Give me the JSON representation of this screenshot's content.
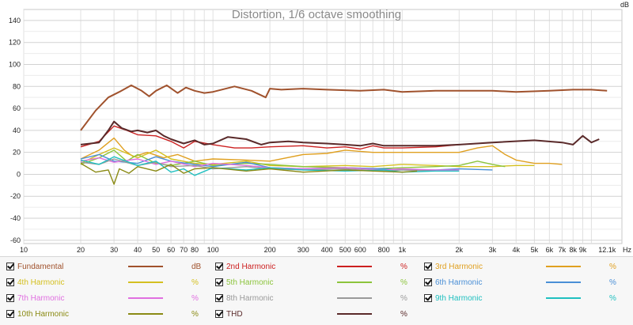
{
  "chart_data": {
    "type": "line",
    "title": "Distortion, 1/6 octave smoothing",
    "xlabel": "Hz",
    "ylabel": "dB",
    "x_scale": "log",
    "xlim": [
      10,
      14500
    ],
    "ylim": [
      -63,
      150
    ],
    "grid": true,
    "y_ticks": [
      140,
      120,
      100,
      80,
      60,
      40,
      20,
      0,
      -20,
      -40,
      -60
    ],
    "x_ticks": [
      {
        "v": 10,
        "label": "10"
      },
      {
        "v": 20,
        "label": "20"
      },
      {
        "v": 30,
        "label": "30"
      },
      {
        "v": 40,
        "label": "40"
      },
      {
        "v": 50,
        "label": "50"
      },
      {
        "v": 60,
        "label": "60"
      },
      {
        "v": 70,
        "label": "70"
      },
      {
        "v": 80,
        "label": "80"
      },
      {
        "v": 100,
        "label": "100"
      },
      {
        "v": 200,
        "label": "200"
      },
      {
        "v": 300,
        "label": "300"
      },
      {
        "v": 400,
        "label": "400"
      },
      {
        "v": 500,
        "label": "500"
      },
      {
        "v": 600,
        "label": "600"
      },
      {
        "v": 800,
        "label": "800"
      },
      {
        "v": 1000,
        "label": "1k"
      },
      {
        "v": 2000,
        "label": "2k"
      },
      {
        "v": 3000,
        "label": "3k"
      },
      {
        "v": 4000,
        "label": "4k"
      },
      {
        "v": 5000,
        "label": "5k"
      },
      {
        "v": 6000,
        "label": "6k"
      },
      {
        "v": 7000,
        "label": "7k"
      },
      {
        "v": 8000,
        "label": "8k"
      },
      {
        "v": 9000,
        "label": "9k"
      },
      {
        "v": 12100,
        "label": "12.1k"
      }
    ],
    "series": [
      {
        "name": "Fundamental",
        "unit": "dB",
        "color": "#a0522d",
        "x": [
          20,
          24,
          28,
          32,
          37,
          42,
          46,
          50,
          57,
          65,
          72,
          80,
          90,
          100,
          130,
          160,
          190,
          200,
          230,
          300,
          400,
          600,
          800,
          1000,
          1500,
          2000,
          3000,
          4000,
          6000,
          8000,
          10000,
          12100
        ],
        "y": [
          40,
          58,
          70,
          75,
          81,
          76,
          71,
          76,
          81,
          74,
          79,
          76,
          74,
          75,
          80,
          76,
          70,
          78,
          77,
          78,
          77,
          76,
          77,
          75,
          76,
          76,
          76,
          75,
          76,
          77,
          77,
          76
        ]
      },
      {
        "name": "2nd Harmonic",
        "unit": "%",
        "color": "#cc2020",
        "x": [
          20,
          25,
          30,
          35,
          40,
          50,
          60,
          70,
          80,
          100,
          130,
          160,
          200,
          300,
          400,
          500,
          600,
          700,
          800,
          1000,
          1500,
          2000,
          3000
        ],
        "y": [
          25,
          30,
          44,
          40,
          36,
          35,
          30,
          24,
          30,
          27,
          24,
          24,
          25,
          26,
          24,
          25,
          23,
          26,
          24,
          24,
          25,
          27,
          29
        ]
      },
      {
        "name": "3rd Harmonic",
        "unit": "%",
        "color": "#e0a020",
        "x": [
          20,
          25,
          30,
          34,
          38,
          45,
          55,
          65,
          80,
          100,
          150,
          200,
          300,
          400,
          500,
          700,
          1000,
          1500,
          2000,
          2500,
          3000,
          3500,
          4000,
          5000,
          6000,
          7000
        ],
        "y": [
          14,
          22,
          33,
          22,
          16,
          20,
          15,
          18,
          12,
          14,
          13,
          12,
          18,
          19,
          22,
          20,
          20,
          20,
          20,
          24,
          26,
          18,
          13,
          10,
          10,
          9
        ]
      },
      {
        "name": "4th Harmonic",
        "unit": "%",
        "color": "#d4c020",
        "x": [
          20,
          25,
          30,
          40,
          50,
          60,
          80,
          100,
          150,
          200,
          300,
          500,
          700,
          1000,
          1500,
          2000,
          3000,
          4000,
          5000
        ],
        "y": [
          10,
          18,
          24,
          15,
          22,
          14,
          10,
          9,
          12,
          8,
          7,
          8,
          7,
          9,
          8,
          7,
          7,
          8,
          8
        ]
      },
      {
        "name": "5th Harmonic",
        "unit": "%",
        "color": "#8cc43c",
        "x": [
          20,
          25,
          30,
          35,
          40,
          50,
          60,
          80,
          100,
          150,
          200,
          300,
          500,
          700,
          1000,
          1500,
          2000,
          2500,
          3000,
          3500
        ],
        "y": [
          9,
          15,
          22,
          12,
          18,
          10,
          8,
          12,
          8,
          10,
          9,
          7,
          6,
          5,
          6,
          7,
          8,
          12,
          9,
          7
        ]
      },
      {
        "name": "6th Harmonic",
        "unit": "%",
        "color": "#4a8fd6",
        "x": [
          20,
          25,
          30,
          40,
          50,
          60,
          80,
          100,
          150,
          200,
          300,
          500,
          800,
          1000,
          1500,
          2000,
          3000
        ],
        "y": [
          14,
          18,
          12,
          10,
          16,
          12,
          9,
          7,
          11,
          6,
          5,
          6,
          5,
          4,
          4,
          5,
          4
        ]
      },
      {
        "name": "7th Harmonic",
        "unit": "%",
        "color": "#e070e0",
        "x": [
          20,
          25,
          30,
          40,
          50,
          60,
          80,
          100,
          150,
          200,
          300,
          500,
          800,
          1000,
          1500,
          2000
        ],
        "y": [
          12,
          15,
          11,
          14,
          9,
          12,
          7,
          10,
          8,
          6,
          5,
          6,
          4,
          5,
          4,
          4
        ]
      },
      {
        "name": "8th Harmonic",
        "unit": "%",
        "color": "#9a9a9a",
        "x": [
          20,
          25,
          30,
          40,
          50,
          60,
          80,
          100,
          150,
          200,
          300,
          500,
          800,
          1000,
          1500
        ],
        "y": [
          11,
          9,
          14,
          8,
          11,
          7,
          8,
          5,
          7,
          5,
          4,
          5,
          3,
          4,
          3
        ]
      },
      {
        "name": "9th Harmonic",
        "unit": "%",
        "color": "#20c0c0",
        "x": [
          20,
          25,
          30,
          40,
          50,
          60,
          70,
          80,
          100,
          150,
          200,
          300,
          500,
          800,
          1000,
          1500,
          2000
        ],
        "y": [
          13,
          9,
          16,
          8,
          12,
          2,
          5,
          -1,
          6,
          4,
          6,
          4,
          3,
          4,
          2,
          3,
          3
        ]
      },
      {
        "name": "10th Harmonic",
        "unit": "%",
        "color": "#8a8a14",
        "x": [
          20,
          24,
          28,
          30,
          32,
          36,
          40,
          50,
          60,
          70,
          80,
          100,
          150,
          200,
          300,
          500,
          700,
          1000,
          1200
        ],
        "y": [
          10,
          2,
          4,
          -9,
          5,
          1,
          7,
          3,
          9,
          1,
          5,
          6,
          3,
          5,
          2,
          4,
          3,
          2,
          3
        ]
      },
      {
        "name": "THD",
        "unit": "%",
        "color": "#5a2a2a",
        "x": [
          20,
          25,
          28,
          30,
          33,
          37,
          40,
          45,
          50,
          55,
          60,
          70,
          80,
          90,
          100,
          120,
          150,
          180,
          200,
          250,
          300,
          400,
          500,
          600,
          700,
          800,
          1000,
          1500,
          2000,
          3000,
          5000,
          7000,
          8000,
          9000,
          10000,
          11000
        ],
        "y": [
          27,
          29,
          40,
          48,
          42,
          39,
          40,
          38,
          40,
          35,
          32,
          28,
          31,
          27,
          28,
          34,
          32,
          27,
          29,
          30,
          29,
          28,
          27,
          26,
          28,
          26,
          26,
          26,
          27,
          29,
          31,
          29,
          27,
          35,
          29,
          32
        ]
      }
    ]
  },
  "legend": {
    "items": [
      {
        "name": "Fundamental",
        "unit": "dB",
        "color": "#a0522d"
      },
      {
        "name": "2nd Harmonic",
        "unit": "%",
        "color": "#cc2020"
      },
      {
        "name": "3rd Harmonic",
        "unit": "%",
        "color": "#e0a020"
      },
      {
        "name": "4th Harmonic",
        "unit": "%",
        "color": "#d4c020"
      },
      {
        "name": "5th Harmonic",
        "unit": "%",
        "color": "#8cc43c"
      },
      {
        "name": "6th Harmonic",
        "unit": "%",
        "color": "#4a8fd6"
      },
      {
        "name": "7th Harmonic",
        "unit": "%",
        "color": "#e070e0"
      },
      {
        "name": "8th Harmonic",
        "unit": "%",
        "color": "#9a9a9a"
      },
      {
        "name": "9th Harmonic",
        "unit": "%",
        "color": "#20c0c0"
      },
      {
        "name": "10th Harmonic",
        "unit": "%",
        "color": "#8a8a14"
      },
      {
        "name": "THD",
        "unit": "%",
        "color": "#5a2a2a"
      }
    ]
  }
}
